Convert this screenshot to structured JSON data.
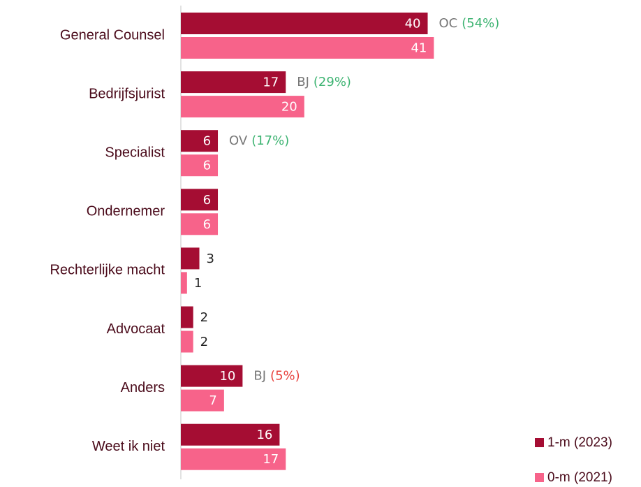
{
  "chart_data": {
    "type": "bar",
    "orientation": "horizontal",
    "categories": [
      "General Counsel",
      "Bedrijfsjurist",
      "Specialist",
      "Ondernemer",
      "Rechterlijke macht",
      "Advocaat",
      "Anders",
      "Weet ik niet"
    ],
    "series": [
      {
        "name": "1-m (2023)",
        "color": "#a50d33",
        "values": [
          40,
          17,
          6,
          6,
          3,
          2,
          10,
          16
        ]
      },
      {
        "name": "0-m (2021)",
        "color": "#f7638a",
        "values": [
          41,
          20,
          6,
          6,
          1,
          2,
          7,
          17
        ]
      }
    ],
    "xlim": [
      0,
      74
    ],
    "annotations": [
      {
        "category": 0,
        "code": "OC",
        "change": "(54%)",
        "color": "#3cb371"
      },
      {
        "category": 1,
        "code": "BJ",
        "change": "(29%)",
        "color": "#3cb371"
      },
      {
        "category": 2,
        "code": "OV",
        "change": "(17%)",
        "color": "#3cb371"
      },
      {
        "category": 6,
        "code": "BJ",
        "change": "(5%)",
        "color": "#e8413c"
      }
    ],
    "legend": "bottom-right"
  }
}
